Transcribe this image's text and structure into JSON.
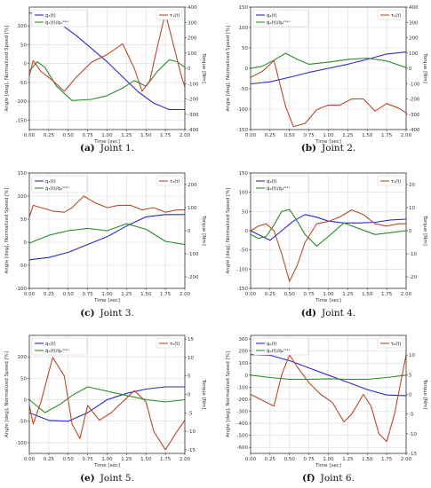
{
  "colors": {
    "angle": "#2a2ad0",
    "speed": "#2a8a2a",
    "torque": "#b84a2a",
    "grid": "#d9d9d9",
    "frame": "#333333"
  },
  "chart_data": [
    {
      "type": "line",
      "caption_letter": "(a)",
      "caption_text": "Joint 1.",
      "xlabel": "Time [sec]",
      "ylabel": "Angle [deg], Normalized Speed [%]",
      "y2label": "Torque [Nm]",
      "xlim": [
        0,
        2
      ],
      "ylim": [
        -175,
        150
      ],
      "y2lim": [
        -400,
        400
      ],
      "xticks": [
        0,
        0.25,
        0.5,
        0.75,
        1.0,
        1.25,
        1.5,
        1.75,
        2.0
      ],
      "xtick_labels": [
        "0.00",
        "0.25",
        "0.50",
        "0.75",
        "1.00",
        "1.25",
        "1.50",
        "1.75",
        "2.00"
      ],
      "yticks": [
        -150,
        -100,
        -50,
        0,
        50,
        100
      ],
      "y2ticks": [
        -400,
        -300,
        -200,
        -100,
        0,
        100,
        200,
        300,
        400
      ],
      "legend_left": [
        "q₁(t)",
        "q̇₁(t)/q̇₁ᵐᵃˣ"
      ],
      "legend_right": [
        "τ₁(t)"
      ],
      "series": [
        {
          "role": "angle",
          "axis": "left",
          "x": [
            0,
            0.2,
            0.4,
            0.6,
            0.8,
            1.0,
            1.2,
            1.4,
            1.6,
            1.8,
            2.0
          ],
          "y": [
            135,
            125,
            105,
            75,
            40,
            5,
            -35,
            -75,
            -105,
            -122,
            -122
          ]
        },
        {
          "role": "speed",
          "axis": "left",
          "x": [
            0,
            0.1,
            0.2,
            0.35,
            0.55,
            0.8,
            1.0,
            1.2,
            1.35,
            1.5,
            1.65,
            1.8,
            1.9,
            2.0
          ],
          "y": [
            -20,
            5,
            -10,
            -60,
            -98,
            -95,
            -85,
            -65,
            -45,
            -60,
            -20,
            10,
            5,
            -10
          ]
        },
        {
          "role": "torque",
          "axis": "right",
          "x": [
            0,
            0.05,
            0.15,
            0.3,
            0.45,
            0.6,
            0.8,
            1.0,
            1.2,
            1.35,
            1.45,
            1.55,
            1.65,
            1.75,
            1.85,
            1.95,
            2.0
          ],
          "y": [
            -50,
            50,
            -20,
            -80,
            -150,
            -60,
            40,
            90,
            160,
            0,
            -150,
            -80,
            150,
            360,
            160,
            -40,
            -120
          ]
        }
      ]
    },
    {
      "type": "line",
      "caption_letter": "(b)",
      "caption_text": "Joint 2.",
      "xlabel": "Time [sec]",
      "ylabel": "Angle [deg], Normalized Speed [%]",
      "y2label": "Torque [Nm]",
      "xlim": [
        0,
        2
      ],
      "ylim": [
        -150,
        150
      ],
      "y2lim": [
        -400,
        400
      ],
      "xticks": [
        0,
        0.25,
        0.5,
        0.75,
        1.0,
        1.25,
        1.5,
        1.75,
        2.0
      ],
      "xtick_labels": [
        "0.00",
        "0.25",
        "0.50",
        "0.75",
        "1.00",
        "1.25",
        "1.50",
        "1.75",
        "2.00"
      ],
      "yticks": [
        -150,
        -100,
        -50,
        0,
        50,
        100,
        150
      ],
      "y2ticks": [
        -400,
        -300,
        -200,
        -100,
        0,
        100,
        200,
        300,
        400
      ],
      "legend_left": [
        "q₂(t)",
        "q̇₂(t)/q̇₂ᵐᵃˣ"
      ],
      "legend_right": [
        "τ₂(t)"
      ],
      "series": [
        {
          "role": "angle",
          "axis": "left",
          "x": [
            0,
            0.25,
            0.5,
            0.75,
            1.0,
            1.25,
            1.5,
            1.75,
            2.0
          ],
          "y": [
            -38,
            -33,
            -22,
            -10,
            0,
            10,
            22,
            35,
            40
          ]
        },
        {
          "role": "speed",
          "axis": "left",
          "x": [
            0,
            0.15,
            0.3,
            0.45,
            0.6,
            0.75,
            1.0,
            1.25,
            1.5,
            1.75,
            2.0
          ],
          "y": [
            0,
            5,
            20,
            37,
            22,
            10,
            15,
            22,
            25,
            18,
            2
          ]
        },
        {
          "role": "torque",
          "axis": "right",
          "x": [
            0,
            0.15,
            0.3,
            0.45,
            0.55,
            0.7,
            0.85,
            1.0,
            1.15,
            1.3,
            1.45,
            1.6,
            1.75,
            1.9,
            2.0
          ],
          "y": [
            -60,
            -20,
            50,
            -250,
            -380,
            -360,
            -270,
            -240,
            -240,
            -200,
            -200,
            -280,
            -230,
            -260,
            -290
          ]
        }
      ]
    },
    {
      "type": "line",
      "caption_letter": "(c)",
      "caption_text": "Joint 3.",
      "xlabel": "Time [sec]",
      "ylabel": "Angle [deg], Normalized Speed [%]",
      "y2label": "Torque [Nm]",
      "xlim": [
        0,
        2
      ],
      "ylim": [
        -100,
        150
      ],
      "y2lim": [
        -250,
        250
      ],
      "xticks": [
        0,
        0.25,
        0.5,
        0.75,
        1.0,
        1.25,
        1.5,
        1.75,
        2.0
      ],
      "xtick_labels": [
        "0.00",
        "0.25",
        "0.50",
        "0.75",
        "1.00",
        "1.25",
        "1.50",
        "1.75",
        "2.00"
      ],
      "yticks": [
        -100,
        -50,
        0,
        50,
        100,
        150
      ],
      "y2ticks": [
        -200,
        -100,
        0,
        100,
        200
      ],
      "legend_left": [
        "q₃(t)",
        "q̇₃(t)/q̇₃ᵐᵃˣ"
      ],
      "legend_right": [
        "τ₃(t)"
      ],
      "series": [
        {
          "role": "angle",
          "axis": "left",
          "x": [
            0,
            0.25,
            0.5,
            0.75,
            1.0,
            1.25,
            1.5,
            1.75,
            2.0
          ],
          "y": [
            -38,
            -33,
            -22,
            -5,
            12,
            35,
            55,
            60,
            60
          ]
        },
        {
          "role": "speed",
          "axis": "left",
          "x": [
            0,
            0.25,
            0.5,
            0.75,
            1.0,
            1.25,
            1.5,
            1.75,
            2.0
          ],
          "y": [
            -2,
            15,
            25,
            30,
            25,
            40,
            28,
            2,
            -5
          ]
        },
        {
          "role": "torque",
          "axis": "right",
          "x": [
            0,
            0.05,
            0.15,
            0.3,
            0.45,
            0.55,
            0.7,
            0.85,
            1.0,
            1.15,
            1.3,
            1.45,
            1.6,
            1.75,
            1.9,
            2.0
          ],
          "y": [
            60,
            110,
            100,
            85,
            80,
            100,
            150,
            120,
            100,
            110,
            110,
            90,
            100,
            80,
            90,
            90
          ]
        }
      ]
    },
    {
      "type": "line",
      "caption_letter": "(d)",
      "caption_text": "Joint 4.",
      "xlabel": "Time [sec]",
      "ylabel": "Angle [deg], Normalized Speed [%]",
      "y2label": "Torque [Nm]",
      "xlim": [
        0,
        2
      ],
      "ylim": [
        -150,
        150
      ],
      "y2lim": [
        -25,
        25
      ],
      "xticks": [
        0,
        0.25,
        0.5,
        0.75,
        1.0,
        1.25,
        1.5,
        1.75,
        2.0
      ],
      "xtick_labels": [
        "0.00",
        "0.25",
        "0.50",
        "0.75",
        "1.00",
        "1.25",
        "1.50",
        "1.75",
        "2.00"
      ],
      "yticks": [
        -150,
        -100,
        -50,
        0,
        50,
        100,
        150
      ],
      "y2ticks": [
        -20,
        -10,
        0,
        10,
        20
      ],
      "legend_left": [
        "q₄(t)",
        "q̇₄(t)/q̇₄ᵐᵃˣ"
      ],
      "legend_right": [
        "τ₄(t)"
      ],
      "series": [
        {
          "role": "angle",
          "axis": "left",
          "x": [
            0,
            0.15,
            0.25,
            0.4,
            0.55,
            0.7,
            0.85,
            1.0,
            1.2,
            1.4,
            1.6,
            1.8,
            2.0
          ],
          "y": [
            0,
            -15,
            -25,
            0,
            25,
            42,
            35,
            25,
            20,
            20,
            22,
            28,
            30
          ]
        },
        {
          "role": "speed",
          "axis": "left",
          "x": [
            0,
            0.1,
            0.2,
            0.3,
            0.4,
            0.5,
            0.6,
            0.7,
            0.85,
            1.0,
            1.2,
            1.4,
            1.6,
            1.8,
            2.0
          ],
          "y": [
            -10,
            -20,
            -15,
            15,
            50,
            55,
            25,
            -10,
            -40,
            -15,
            20,
            5,
            -10,
            -5,
            0
          ]
        },
        {
          "role": "torque",
          "axis": "right",
          "x": [
            0,
            0.1,
            0.2,
            0.3,
            0.4,
            0.5,
            0.6,
            0.7,
            0.85,
            1.0,
            1.15,
            1.3,
            1.45,
            1.6,
            1.75,
            1.9,
            2.0
          ],
          "y": [
            0,
            2,
            3,
            0,
            -10,
            -22,
            -15,
            -5,
            3,
            4,
            6,
            9,
            7,
            3,
            2,
            3,
            3
          ]
        }
      ]
    },
    {
      "type": "line",
      "caption_letter": "(e)",
      "caption_text": "Joint 5.",
      "xlabel": "Time [sec]",
      "ylabel": "Angle [deg], Normalized Speed [%]",
      "y2label": "Torque [Nm]",
      "xlim": [
        0,
        2
      ],
      "ylim": [
        -125,
        150
      ],
      "y2lim": [
        -16,
        16
      ],
      "xticks": [
        0,
        0.25,
        0.5,
        0.75,
        1.0,
        1.25,
        1.5,
        1.75,
        2.0
      ],
      "xtick_labels": [
        "0.00",
        "0.25",
        "0.50",
        "0.75",
        "1.00",
        "1.25",
        "1.50",
        "1.75",
        "2.00"
      ],
      "yticks": [
        -100,
        -50,
        0,
        50,
        100
      ],
      "y2ticks": [
        -15,
        -10,
        -5,
        0,
        5,
        10,
        15
      ],
      "legend_left": [
        "q₅(t)",
        "q̇₅(t)/q̇₅ᵐᵃˣ"
      ],
      "legend_right": [
        "τ₅(t)"
      ],
      "series": [
        {
          "role": "angle",
          "axis": "left",
          "x": [
            0,
            0.25,
            0.5,
            0.75,
            1.0,
            1.25,
            1.5,
            1.75,
            2.0
          ],
          "y": [
            -30,
            -48,
            -50,
            -30,
            0,
            15,
            25,
            30,
            30
          ]
        },
        {
          "role": "speed",
          "axis": "left",
          "x": [
            0,
            0.2,
            0.4,
            0.55,
            0.75,
            1.0,
            1.25,
            1.5,
            1.75,
            2.0
          ],
          "y": [
            0,
            -30,
            -10,
            10,
            30,
            20,
            10,
            0,
            -5,
            0
          ]
        },
        {
          "role": "torque",
          "axis": "right",
          "x": [
            0,
            0.05,
            0.15,
            0.3,
            0.45,
            0.55,
            0.65,
            0.75,
            0.9,
            1.05,
            1.2,
            1.35,
            1.5,
            1.6,
            1.75,
            1.9,
            2.0
          ],
          "y": [
            -3,
            -8,
            -2,
            10,
            5,
            -8,
            -12,
            -3,
            -7,
            -5,
            -2,
            1,
            -2,
            -10,
            -15,
            -10,
            -7
          ]
        }
      ]
    },
    {
      "type": "line",
      "caption_letter": "(f)",
      "caption_text": "Joint 6.",
      "xlabel": "Time [sec]",
      "ylabel": "Angle [deg], Normalized Speed [%]",
      "y2label": "Torque [Nm]",
      "xlim": [
        0,
        2
      ],
      "ylim": [
        -650,
        330
      ],
      "y2lim": [
        -15,
        15
      ],
      "xticks": [
        0,
        0.25,
        0.5,
        0.75,
        1.0,
        1.25,
        1.5,
        1.75,
        2.0
      ],
      "xtick_labels": [
        "0.00",
        "0.25",
        "0.50",
        "0.75",
        "1.00",
        "1.25",
        "1.50",
        "1.75",
        "2.00"
      ],
      "yticks": [
        -600,
        -500,
        -400,
        -300,
        -200,
        -100,
        0,
        100,
        200,
        300
      ],
      "y2ticks": [
        -15,
        -10,
        -5,
        0,
        5,
        10
      ],
      "legend_left": [
        "q₆(t)",
        "q̇₆(t)/q̇₆ᵐᵃˣ"
      ],
      "legend_right": [
        "τ₆(t)"
      ],
      "series": [
        {
          "role": "angle",
          "axis": "left",
          "x": [
            0,
            0.25,
            0.5,
            0.75,
            1.0,
            1.25,
            1.5,
            1.75,
            2.0
          ],
          "y": [
            170,
            165,
            120,
            60,
            0,
            -60,
            -120,
            -165,
            -170
          ]
        },
        {
          "role": "speed",
          "axis": "left",
          "x": [
            0,
            0.25,
            0.5,
            0.75,
            1.0,
            1.25,
            1.5,
            1.75,
            2.0
          ],
          "y": [
            0,
            -20,
            -35,
            -35,
            -30,
            -35,
            -35,
            -20,
            0
          ]
        },
        {
          "role": "torque",
          "axis": "right",
          "x": [
            0,
            0.1,
            0.2,
            0.3,
            0.4,
            0.5,
            0.6,
            0.75,
            0.9,
            1.05,
            1.2,
            1.3,
            1.45,
            1.55,
            1.65,
            1.75,
            1.85,
            2.0
          ],
          "y": [
            0,
            -1,
            -2,
            -3,
            5,
            10,
            7,
            3,
            0,
            -2,
            -7,
            -5,
            0,
            -3,
            -10,
            -12,
            -5,
            10
          ]
        }
      ]
    }
  ]
}
